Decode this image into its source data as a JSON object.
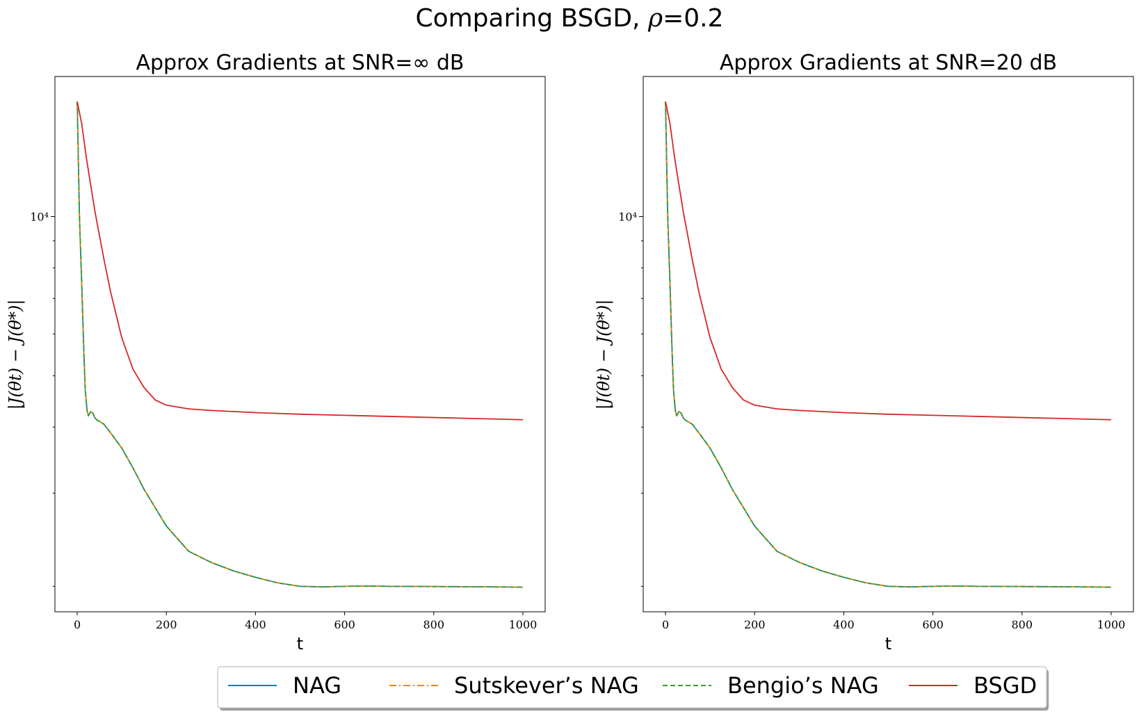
{
  "figure": {
    "suptitle_prefix": "Comparing BSGD, ",
    "suptitle_rho": "ρ",
    "suptitle_suffix": "=0.2"
  },
  "legend": [
    {
      "label": "NAG",
      "color": "#1f77b4",
      "dash": "solid"
    },
    {
      "label": "Sutskever’s NAG",
      "color": "#ff7f0e",
      "dash": "dashdot"
    },
    {
      "label": "Bengio’s NAG",
      "color": "#2ca02c",
      "dash": "dashed"
    },
    {
      "label": "BSGD",
      "color": "#d62728",
      "dash": "solid"
    }
  ],
  "chart_data": [
    {
      "type": "line",
      "title": "Approx Gradients at SNR=∞ dB",
      "xlabel": "t",
      "ylabel": "|J(θt) − J(θ*)|",
      "yscale": "log",
      "xlim": [
        -50,
        1050
      ],
      "ylim": [
        1790,
        18400
      ],
      "xticks": [
        0,
        200,
        400,
        600,
        800,
        1000
      ],
      "ytick_labels": [
        {
          "value": 10000,
          "label": "10⁴"
        }
      ],
      "yminor_ticks": [
        2000,
        3000,
        4000,
        5000,
        6000,
        7000,
        8000,
        9000
      ],
      "grid": false,
      "series": [
        {
          "name": "NAG",
          "color": "#1f77b4",
          "dash": "solid",
          "x": [
            0,
            5,
            10,
            15,
            18,
            20,
            22,
            25,
            30,
            35,
            40,
            45,
            50,
            60,
            75,
            100,
            125,
            150,
            200,
            250,
            300,
            350,
            400,
            450,
            500,
            550,
            600,
            650,
            700,
            800,
            900,
            1000
          ],
          "y": [
            16500,
            10000,
            7500,
            5500,
            4700,
            4500,
            4300,
            4200,
            4280,
            4250,
            4160,
            4120,
            4100,
            4050,
            3900,
            3650,
            3350,
            3050,
            2600,
            2330,
            2220,
            2140,
            2080,
            2030,
            2000,
            1995,
            2000,
            2003,
            2000,
            1998,
            1996,
            1993
          ]
        },
        {
          "name": "Sutskever’s NAG",
          "color": "#ff7f0e",
          "dash": "dashdot",
          "x": [
            0,
            5,
            10,
            15,
            18,
            20,
            22,
            25,
            30,
            35,
            40,
            45,
            50,
            60,
            75,
            100,
            125,
            150,
            200,
            250,
            300,
            350,
            400,
            450,
            500,
            550,
            600,
            650,
            700,
            800,
            900,
            1000
          ],
          "y": [
            16500,
            10000,
            7500,
            5500,
            4700,
            4500,
            4300,
            4200,
            4280,
            4250,
            4160,
            4120,
            4100,
            4050,
            3900,
            3650,
            3350,
            3050,
            2600,
            2330,
            2220,
            2140,
            2080,
            2030,
            2000,
            1995,
            2000,
            2003,
            2000,
            1998,
            1996,
            1993
          ]
        },
        {
          "name": "Bengio’s NAG",
          "color": "#2ca02c",
          "dash": "dashed",
          "x": [
            0,
            5,
            10,
            15,
            18,
            20,
            22,
            25,
            30,
            35,
            40,
            45,
            50,
            60,
            75,
            100,
            125,
            150,
            200,
            250,
            300,
            350,
            400,
            450,
            500,
            550,
            600,
            650,
            700,
            800,
            900,
            1000
          ],
          "y": [
            16500,
            10000,
            7500,
            5500,
            4700,
            4500,
            4300,
            4200,
            4280,
            4250,
            4160,
            4120,
            4100,
            4050,
            3900,
            3650,
            3350,
            3050,
            2600,
            2330,
            2220,
            2140,
            2080,
            2030,
            2000,
            1995,
            2000,
            2003,
            2000,
            1998,
            1996,
            1993
          ]
        },
        {
          "name": "BSGD",
          "color": "#d62728",
          "dash": "solid",
          "x": [
            0,
            10,
            20,
            30,
            40,
            50,
            60,
            75,
            100,
            125,
            150,
            175,
            200,
            250,
            300,
            400,
            500,
            600,
            700,
            800,
            900,
            1000
          ],
          "y": [
            16500,
            15000,
            13000,
            11500,
            10200,
            9200,
            8300,
            7200,
            5900,
            5150,
            4750,
            4500,
            4400,
            4330,
            4300,
            4260,
            4230,
            4210,
            4190,
            4170,
            4150,
            4130
          ]
        }
      ]
    },
    {
      "type": "line",
      "title": "Approx Gradients at SNR=20 dB",
      "xlabel": "t",
      "ylabel": "|J(θt) − J(θ*)|",
      "yscale": "log",
      "xlim": [
        -50,
        1050
      ],
      "ylim": [
        1790,
        18400
      ],
      "xticks": [
        0,
        200,
        400,
        600,
        800,
        1000
      ],
      "ytick_labels": [
        {
          "value": 10000,
          "label": "10⁴"
        }
      ],
      "yminor_ticks": [
        2000,
        3000,
        4000,
        5000,
        6000,
        7000,
        8000,
        9000
      ],
      "grid": false,
      "series": [
        {
          "name": "NAG",
          "color": "#1f77b4",
          "dash": "solid",
          "x": [
            0,
            5,
            10,
            15,
            18,
            20,
            22,
            25,
            30,
            35,
            40,
            45,
            50,
            60,
            75,
            100,
            125,
            150,
            200,
            250,
            300,
            350,
            400,
            450,
            500,
            550,
            600,
            650,
            700,
            800,
            900,
            1000
          ],
          "y": [
            16500,
            10000,
            7500,
            5500,
            4700,
            4500,
            4300,
            4200,
            4280,
            4250,
            4160,
            4120,
            4100,
            4050,
            3900,
            3650,
            3350,
            3050,
            2600,
            2330,
            2220,
            2140,
            2080,
            2030,
            2000,
            1995,
            2000,
            2003,
            2000,
            1998,
            1996,
            1993
          ]
        },
        {
          "name": "Sutskever’s NAG",
          "color": "#ff7f0e",
          "dash": "dashdot",
          "x": [
            0,
            5,
            10,
            15,
            18,
            20,
            22,
            25,
            30,
            35,
            40,
            45,
            50,
            60,
            75,
            100,
            125,
            150,
            200,
            250,
            300,
            350,
            400,
            450,
            500,
            550,
            600,
            650,
            700,
            800,
            900,
            1000
          ],
          "y": [
            16500,
            10000,
            7500,
            5500,
            4700,
            4500,
            4300,
            4200,
            4280,
            4250,
            4160,
            4120,
            4100,
            4050,
            3900,
            3650,
            3350,
            3050,
            2600,
            2330,
            2220,
            2140,
            2080,
            2030,
            2000,
            1995,
            2000,
            2003,
            2000,
            1998,
            1996,
            1993
          ]
        },
        {
          "name": "Bengio’s NAG",
          "color": "#2ca02c",
          "dash": "dashed",
          "x": [
            0,
            5,
            10,
            15,
            18,
            20,
            22,
            25,
            30,
            35,
            40,
            45,
            50,
            60,
            75,
            100,
            125,
            150,
            200,
            250,
            300,
            350,
            400,
            450,
            500,
            550,
            600,
            650,
            700,
            800,
            900,
            1000
          ],
          "y": [
            16500,
            10000,
            7500,
            5500,
            4700,
            4500,
            4300,
            4200,
            4280,
            4250,
            4160,
            4120,
            4100,
            4050,
            3900,
            3650,
            3350,
            3050,
            2600,
            2330,
            2220,
            2140,
            2080,
            2030,
            2000,
            1995,
            2000,
            2003,
            2000,
            1998,
            1996,
            1993
          ]
        },
        {
          "name": "BSGD",
          "color": "#d62728",
          "dash": "solid",
          "x": [
            0,
            10,
            20,
            30,
            40,
            50,
            60,
            75,
            100,
            125,
            150,
            175,
            200,
            250,
            300,
            400,
            500,
            600,
            700,
            800,
            900,
            1000
          ],
          "y": [
            16500,
            15000,
            13000,
            11500,
            10200,
            9200,
            8300,
            7200,
            5900,
            5150,
            4750,
            4500,
            4400,
            4330,
            4300,
            4260,
            4230,
            4210,
            4190,
            4170,
            4150,
            4130
          ]
        }
      ]
    }
  ]
}
